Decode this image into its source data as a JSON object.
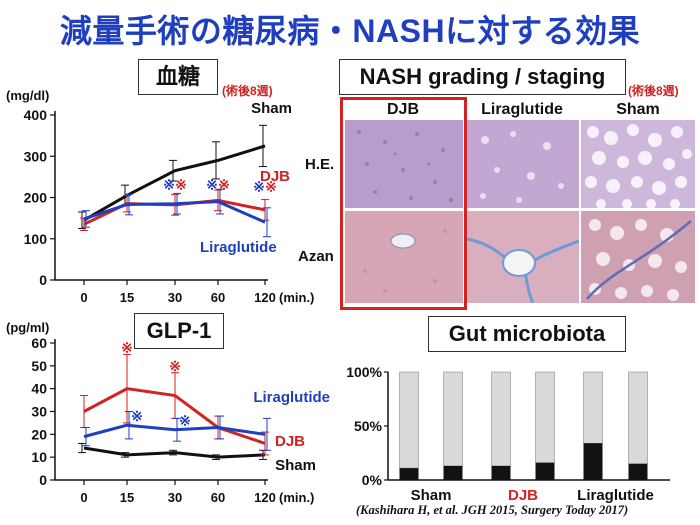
{
  "slide_title": "減量手術の糖尿病・NASHに対する効果",
  "panels": {
    "glucose": {
      "label": "血糖",
      "note": "(術後8週)"
    },
    "glp1": {
      "label": "GLP-1"
    },
    "nash": {
      "label": "NASH grading / staging",
      "note": "(術後8週)",
      "columns": [
        "DJB",
        "Liraglutide",
        "Sham"
      ],
      "rows": [
        "H.E.",
        "Azan"
      ]
    },
    "microbiota": {
      "label": "Gut microbiota"
    }
  },
  "citation": "(Kashihara H, et al. JGH 2015, Surgery Today 2017)",
  "colors": {
    "title": "#1f3fbf",
    "sham": "#111111",
    "djb": "#d22222",
    "liraglutide": "#1f3fbf",
    "frame": "#d22222"
  },
  "chart_data": [
    {
      "type": "line",
      "ylabel": "(mg/dl)",
      "xlabel": "(min.)",
      "x": [
        0,
        15,
        30,
        60,
        120
      ],
      "xticks": [
        "0",
        "15",
        "30",
        "60",
        "120"
      ],
      "ylim": [
        0,
        400
      ],
      "yticks": [
        0,
        100,
        200,
        300,
        400
      ],
      "series": [
        {
          "name": "Sham",
          "color": "#111111",
          "values": [
            145,
            205,
            265,
            290,
            325
          ],
          "err": [
            20,
            25,
            25,
            45,
            50
          ]
        },
        {
          "name": "DJB",
          "color": "#d22222",
          "values": [
            135,
            185,
            182,
            193,
            170
          ],
          "err": [
            15,
            20,
            25,
            25,
            25
          ]
        },
        {
          "name": "Liraglutide",
          "color": "#1f3fbf",
          "values": [
            148,
            183,
            185,
            190,
            140
          ],
          "err": [
            20,
            25,
            25,
            30,
            35
          ]
        }
      ],
      "significance": {
        "symbol": "※",
        "x": [
          30,
          60,
          120
        ],
        "marks": [
          {
            "color": "#1f3fbf"
          },
          {
            "color": "#d22222"
          }
        ]
      }
    },
    {
      "type": "line",
      "ylabel": "(pg/ml)",
      "xlabel": "(min.)",
      "x": [
        0,
        15,
        30,
        60,
        120
      ],
      "xticks": [
        "0",
        "15",
        "30",
        "60",
        "120"
      ],
      "ylim": [
        0,
        60
      ],
      "yticks": [
        0,
        10,
        20,
        30,
        40,
        50,
        60
      ],
      "series": [
        {
          "name": "Sham",
          "color": "#111111",
          "values": [
            14,
            11,
            12,
            10,
            11
          ],
          "err": [
            2,
            1,
            1,
            1,
            2
          ]
        },
        {
          "name": "DJB",
          "color": "#d22222",
          "values": [
            30,
            40,
            37,
            23,
            16
          ],
          "err": [
            7,
            15,
            10,
            5,
            5
          ]
        },
        {
          "name": "Liraglutide",
          "color": "#1f3fbf",
          "values": [
            19,
            24,
            22,
            23,
            20
          ],
          "err": [
            4,
            6,
            5,
            5,
            7
          ]
        }
      ],
      "significance": {
        "symbol": "※",
        "marks": [
          {
            "x": 15,
            "y": 58,
            "color": "#d22222"
          },
          {
            "x": 30,
            "y": 50,
            "color": "#d22222"
          },
          {
            "x": 15,
            "y": 28,
            "color": "#1f3fbf"
          },
          {
            "x": 30,
            "y": 26,
            "color": "#1f3fbf"
          }
        ]
      }
    },
    {
      "type": "bar",
      "stacked": true,
      "categories": [
        "Sham",
        "DJB",
        "Liraglutide"
      ],
      "category_colors": [
        "#111111",
        "#d22222",
        "#111111"
      ],
      "bars_per_group": 2,
      "yticks": [
        "0%",
        "50%",
        "100%"
      ],
      "ylim": [
        0,
        100
      ],
      "black_fraction": [
        [
          11,
          13
        ],
        [
          13,
          16
        ],
        [
          34,
          15
        ]
      ]
    }
  ]
}
